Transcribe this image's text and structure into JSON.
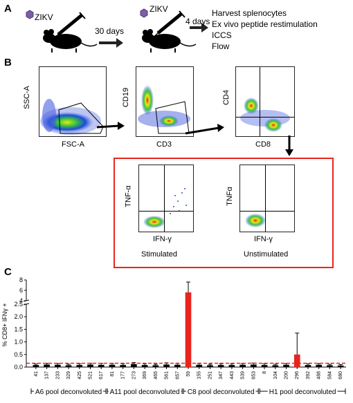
{
  "panels": {
    "a": "A",
    "b": "B",
    "c": "C"
  },
  "panel_a": {
    "virus_label_1": "ZIKV",
    "virus_label_2": "ZIKV",
    "interval_1": "30 days",
    "interval_2": "4 days",
    "steps": [
      "Harvest splenocytes",
      "Ex vivo peptide restimulation",
      "ICCS",
      "Flow"
    ]
  },
  "panel_b": {
    "plot1": {
      "y": "SSC-A",
      "x": "FSC-A"
    },
    "plot2": {
      "y": "CD19",
      "x": "CD3"
    },
    "plot3": {
      "y": "CD4",
      "x": "CD8"
    },
    "plot4": {
      "y": "TNF-α",
      "x": "IFN-γ",
      "condition": "Stimulated"
    },
    "plot5": {
      "y": "TNFα",
      "x": "IFN-γ",
      "condition": "Unstimulated"
    },
    "highlight_color": "#e8241d"
  },
  "chart_data": {
    "type": "bar",
    "ylabel": "% CD8+ IFNγ +",
    "yticks_upper": [
      "8",
      "6",
      "4"
    ],
    "yticks_lower": [
      "2.5",
      "2.0",
      "1.5",
      "1.0",
      "0.5",
      "0.0"
    ],
    "threshold": 0.15,
    "threshold_color": "#e8241d",
    "bar_color": "#e8241d",
    "groups": [
      {
        "label": "A6 pool deconvoluted",
        "ticks": [
          "41",
          "137",
          "233",
          "329",
          "425",
          "521",
          "617"
        ],
        "categories": 7
      },
      {
        "label": "A11 pool deconvoluted",
        "ticks": [
          "81",
          "177",
          "273",
          "369",
          "465",
          "561",
          "657"
        ],
        "categories": 7
      },
      {
        "label": "C8 pool deconvoluted",
        "ticks": [
          "59",
          "155",
          "251",
          "347",
          "443",
          "539",
          "653"
        ],
        "categories": 7
      },
      {
        "label": "H1 pool deconvoluted",
        "ticks": [
          "8",
          "104",
          "200",
          "296",
          "392",
          "488",
          "584",
          "680"
        ],
        "categories": 8
      }
    ],
    "values": [
      0.08,
      0.1,
      0.09,
      0.07,
      0.08,
      0.1,
      0.09,
      0.09,
      0.08,
      0.12,
      0.08,
      0.07,
      0.1,
      0.09,
      5.6,
      0.09,
      0.07,
      0.08,
      0.08,
      0.09,
      0.1,
      0.08,
      0.07,
      0.09,
      0.5,
      0.08,
      0.09,
      0.07,
      0.06
    ],
    "errors": [
      0.04,
      0.05,
      0.05,
      0.04,
      0.05,
      0.05,
      0.06,
      0.05,
      0.05,
      0.06,
      0.05,
      0.04,
      0.07,
      0.05,
      2.0,
      0.05,
      0.04,
      0.05,
      0.05,
      0.05,
      0.06,
      0.05,
      0.04,
      0.05,
      0.85,
      0.05,
      0.05,
      0.04,
      0.04
    ]
  }
}
